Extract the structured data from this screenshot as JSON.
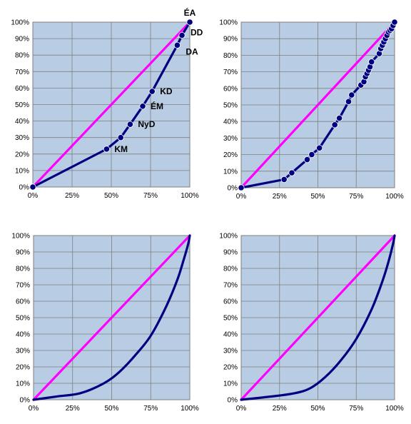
{
  "colors": {
    "plot_bg": "#b8cce4",
    "grid": "#7f7f7f",
    "diagonal": "#ff00ff",
    "curve": "#000080",
    "marker": "#000080"
  },
  "chart_data": [
    {
      "type": "line",
      "position": "top-left",
      "title": "",
      "xlabel": "",
      "ylabel": "",
      "xlim": [
        0,
        100
      ],
      "ylim": [
        0,
        100
      ],
      "x_ticks": [
        "0%",
        "25%",
        "50%",
        "75%",
        "100%"
      ],
      "y_ticks": [
        "0%",
        "10%",
        "20%",
        "30%",
        "40%",
        "50%",
        "60%",
        "70%",
        "80%",
        "90%",
        "100%"
      ],
      "grid": true,
      "legend": "none",
      "markers": true,
      "smooth": false,
      "series": [
        {
          "role": "equality-line",
          "x": [
            0,
            100
          ],
          "y": [
            0,
            100
          ]
        },
        {
          "role": "lorenz-curve",
          "x": [
            0,
            47,
            56,
            62,
            70,
            76,
            92,
            95,
            100
          ],
          "y": [
            0,
            23,
            30,
            38,
            49,
            58,
            86,
            92,
            100
          ]
        }
      ],
      "point_labels": [
        {
          "text": "KM",
          "x": 47,
          "y": 23
        },
        {
          "text": "NyD",
          "x": 62,
          "y": 38
        },
        {
          "text": "ÉM",
          "x": 70,
          "y": 49
        },
        {
          "text": "KD",
          "x": 76,
          "y": 58
        },
        {
          "text": "DA",
          "x": 92,
          "y": 86
        },
        {
          "text": "DD",
          "x": 95,
          "y": 92
        },
        {
          "text": "ÉA",
          "x": 100,
          "y": 100
        }
      ]
    },
    {
      "type": "line",
      "position": "top-right",
      "title": "",
      "xlabel": "",
      "ylabel": "",
      "xlim": [
        0,
        100
      ],
      "ylim": [
        0,
        100
      ],
      "x_ticks": [
        "0%",
        "25%",
        "50%",
        "75%",
        "100%"
      ],
      "y_ticks": [
        "0%",
        "10%",
        "20%",
        "30%",
        "40%",
        "50%",
        "60%",
        "70%",
        "80%",
        "90%",
        "100%"
      ],
      "grid": true,
      "legend": "none",
      "markers": true,
      "smooth": false,
      "series": [
        {
          "role": "equality-line",
          "x": [
            0,
            100
          ],
          "y": [
            0,
            100
          ]
        },
        {
          "role": "lorenz-curve",
          "x": [
            0,
            28,
            33,
            43,
            46,
            51,
            61,
            64,
            70,
            72,
            78,
            80,
            81,
            82,
            83,
            84,
            85,
            90,
            91,
            92,
            93,
            94,
            95,
            96,
            97,
            98,
            99,
            100
          ],
          "y": [
            0,
            5,
            9,
            17,
            20,
            24,
            38,
            42,
            52,
            56,
            62,
            64,
            67,
            69,
            71,
            73,
            76,
            81,
            84,
            86,
            88,
            90,
            92,
            94,
            95,
            96,
            98,
            100
          ]
        }
      ],
      "point_labels": []
    },
    {
      "type": "line",
      "position": "bottom-left",
      "title": "",
      "xlabel": "",
      "ylabel": "",
      "xlim": [
        0,
        100
      ],
      "ylim": [
        0,
        100
      ],
      "x_ticks": [
        "0%",
        "25%",
        "50%",
        "75%",
        "100%"
      ],
      "y_ticks": [
        "0%",
        "10%",
        "20%",
        "30%",
        "40%",
        "50%",
        "60%",
        "70%",
        "80%",
        "90%",
        "100%"
      ],
      "grid": true,
      "legend": "none",
      "markers": false,
      "smooth": true,
      "series": [
        {
          "role": "equality-line",
          "x": [
            0,
            100
          ],
          "y": [
            0,
            100
          ]
        },
        {
          "role": "lorenz-curve",
          "x": [
            0,
            15,
            30,
            45,
            55,
            65,
            75,
            85,
            92,
            96,
            99,
            100
          ],
          "y": [
            0,
            2,
            4,
            10,
            17,
            27,
            39,
            57,
            73,
            85,
            95,
            100
          ]
        }
      ],
      "point_labels": []
    },
    {
      "type": "line",
      "position": "bottom-right",
      "title": "",
      "xlabel": "",
      "ylabel": "",
      "xlim": [
        0,
        100
      ],
      "ylim": [
        0,
        100
      ],
      "x_ticks": [
        "0%",
        "25%",
        "50%",
        "75%",
        "100%"
      ],
      "y_ticks": [
        "0%",
        "10%",
        "20%",
        "30%",
        "40%",
        "50%",
        "60%",
        "70%",
        "80%",
        "90%",
        "100%"
      ],
      "grid": true,
      "legend": "none",
      "markers": false,
      "smooth": true,
      "series": [
        {
          "role": "equality-line",
          "x": [
            0,
            100
          ],
          "y": [
            0,
            100
          ]
        },
        {
          "role": "lorenz-curve",
          "x": [
            0,
            20,
            35,
            45,
            55,
            65,
            75,
            85,
            92,
            96,
            99,
            100
          ],
          "y": [
            0,
            2,
            4,
            7,
            14,
            24,
            37,
            55,
            72,
            84,
            95,
            100
          ]
        }
      ],
      "point_labels": []
    }
  ]
}
